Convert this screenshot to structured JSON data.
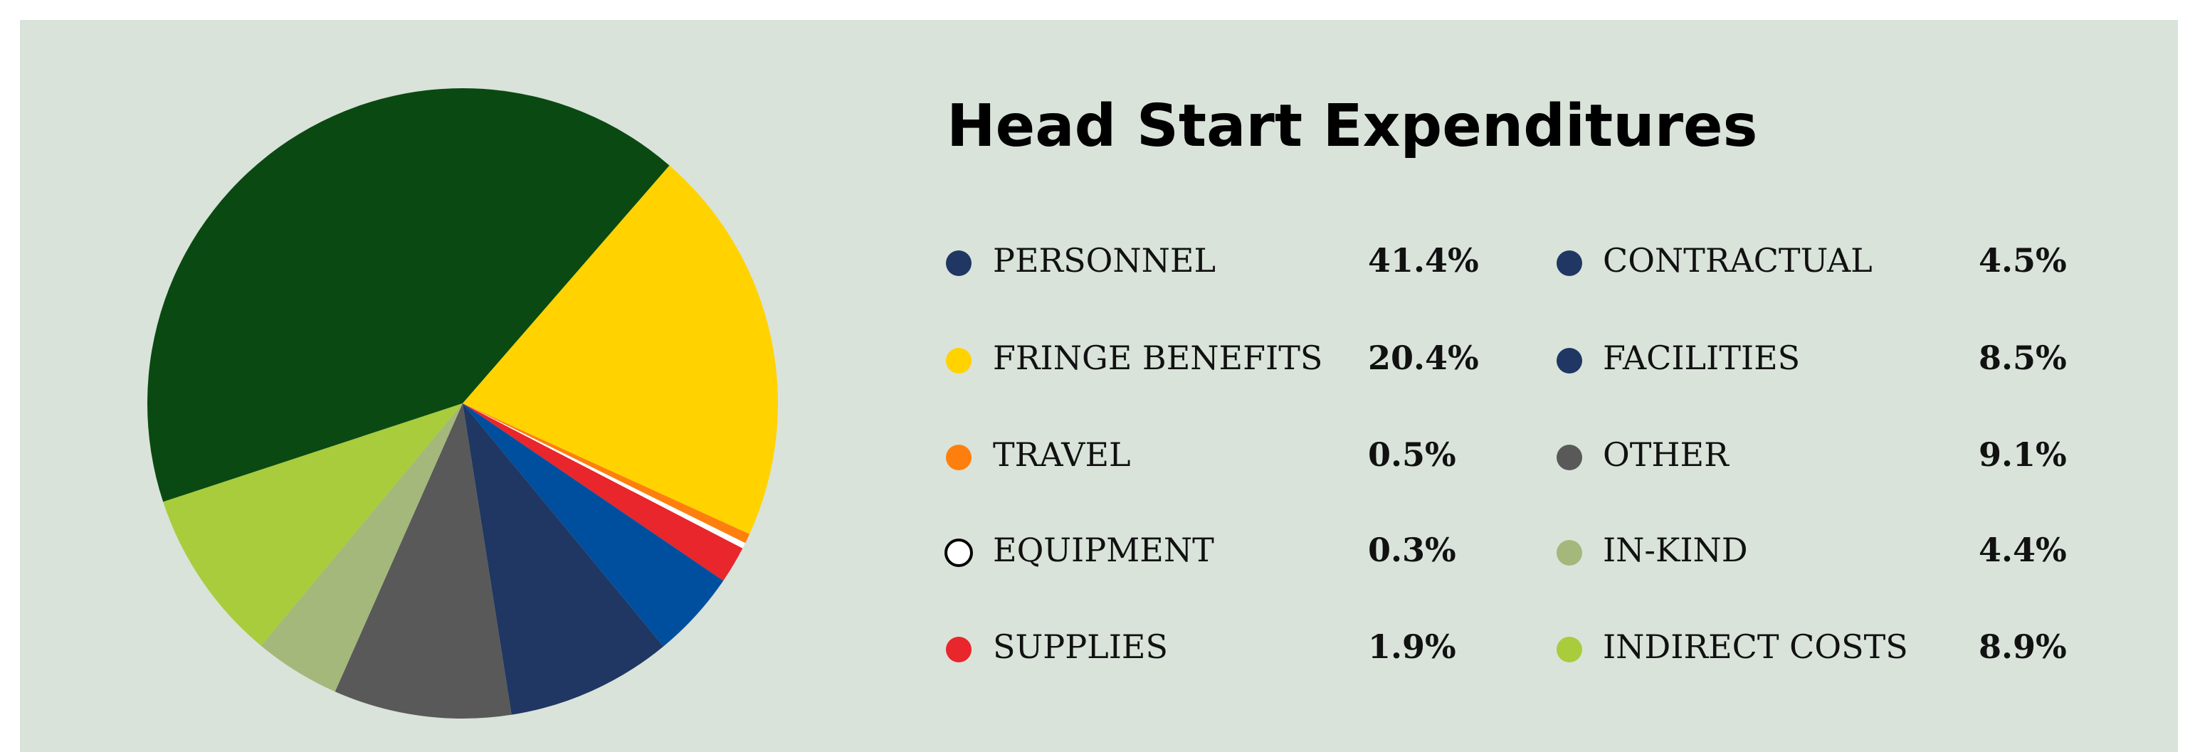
{
  "chart_data": {
    "type": "pie",
    "title": "Head Start Expenditures",
    "categories": [
      "PERSONNEL",
      "FRINGE BENEFITS",
      "TRAVEL",
      "EQUIPMENT",
      "SUPPLIES",
      "CONTRACTUAL",
      "FACILITIES",
      "OTHER",
      "IN-KIND",
      "INDIRECT COSTS"
    ],
    "values": [
      41.4,
      20.4,
      0.5,
      0.3,
      1.9,
      4.5,
      8.5,
      9.1,
      4.4,
      8.9
    ],
    "value_labels": [
      "41.4%",
      "20.4%",
      "0.5%",
      "0.3%",
      "1.9%",
      "4.5%",
      "8.5%",
      "9.1%",
      "4.4%",
      "8.9%"
    ],
    "colors": [
      "#0a4a12",
      "#ffd200",
      "#ff7f0e",
      "#ffffff",
      "#e8262b",
      "#004f9f",
      "#1f3762",
      "#595959",
      "#a3b87a",
      "#a8cc3c"
    ],
    "legend_colors": [
      "#1f3762",
      "#ffd200",
      "#ff7f0e",
      "#ffffff",
      "#e8262b",
      "#1f3762",
      "#1f3762",
      "#595959",
      "#a3b87a",
      "#a8cc3c"
    ]
  }
}
